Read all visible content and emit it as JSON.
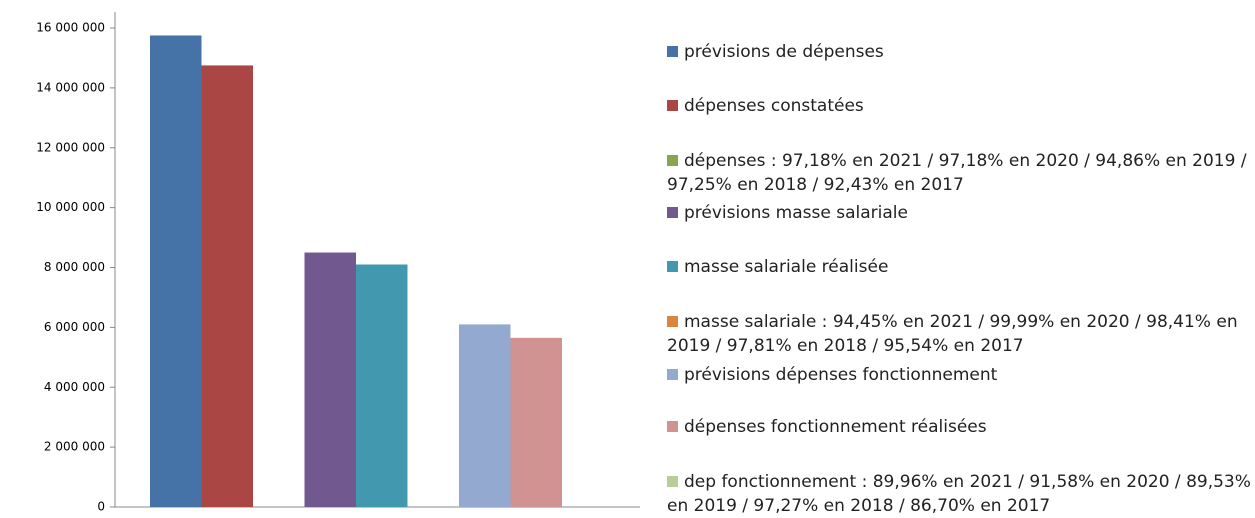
{
  "chart_data": {
    "type": "bar",
    "categories": [
      null,
      null,
      null
    ],
    "series": [
      {
        "name": "prévisions de dépenses",
        "color": "#4572a7",
        "values": [
          15750000,
          null,
          null
        ]
      },
      {
        "name": "dépenses constatées",
        "color": "#aa4643",
        "values": [
          14750000,
          null,
          null
        ]
      },
      {
        "name": "dépenses : 97,18% en 2021 / 97,18% en 2020 / 94,86% en 2019 / 97,25% en 2018 / 92,43% en 2017",
        "color": "#89a54e",
        "values": [
          0,
          null,
          null
        ]
      },
      {
        "name": "prévisions masse salariale",
        "color": "#71588f",
        "values": [
          null,
          8500000,
          null
        ]
      },
      {
        "name": "masse salariale réalisée",
        "color": "#4198af",
        "values": [
          null,
          8100000,
          null
        ]
      },
      {
        "name": "masse salariale : 94,45% en 2021 / 99,99% en 2020 / 98,41% en 2019 /  97,81% en 2018 / 95,54% en 2017",
        "color": "#db843d",
        "values": [
          null,
          0,
          null
        ]
      },
      {
        "name": "prévisions dépenses fonctionnement",
        "color": "#93a9cf",
        "values": [
          null,
          null,
          6100000
        ]
      },
      {
        "name": "dépenses fonctionnement réalisées",
        "color": "#d19392",
        "values": [
          null,
          null,
          5650000
        ]
      },
      {
        "name": "dep fonctionnement : 89,96% en 2021 / 91,58% en 2020 / 89,53% en 2019 / 97,27% en 2018 / 86,70% en 2017",
        "color": "#b9cd96",
        "values": [
          null,
          null,
          0
        ]
      }
    ],
    "ylim": [
      0,
      16000000
    ],
    "yticks": [
      0,
      {
        "value": 2000000,
        "label": "2 000 000"
      },
      {
        "value": 4000000,
        "label": "4 000 000"
      },
      {
        "value": 6000000,
        "label": "6 000 000"
      },
      {
        "value": 8000000,
        "label": "8 000 000"
      },
      {
        "value": 10000000,
        "label": "10 000 000"
      },
      {
        "value": 12000000,
        "label": "12 000 000"
      },
      {
        "value": 14000000,
        "label": "14 000 000"
      },
      {
        "value": 16000000,
        "label": "16 000 000"
      }
    ],
    "grid": false,
    "legend": "right"
  }
}
